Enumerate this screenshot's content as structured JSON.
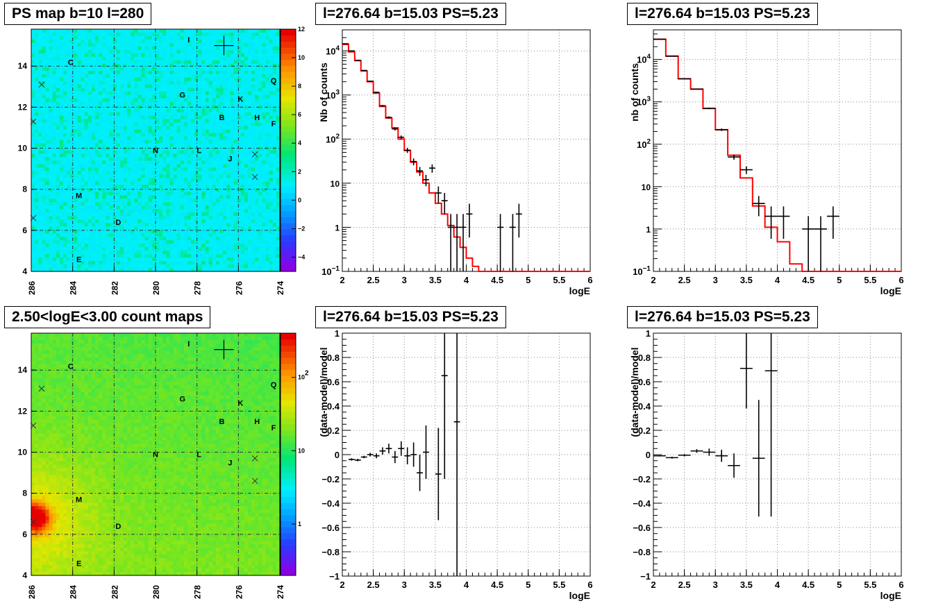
{
  "chart_data": [
    {
      "type": "heatmap",
      "title": "PS map b=10 l=280",
      "xlim": [
        286,
        274
      ],
      "ylim": [
        4,
        15.8
      ],
      "x_ticks": [
        "286",
        "284",
        "282",
        "280",
        "278",
        "276",
        "274"
      ],
      "y_ticks": [
        "4",
        "6",
        "8",
        "10",
        "12",
        "14"
      ],
      "palette_ticks": [
        "−4",
        "−2",
        "0",
        "2",
        "4",
        "6",
        "8",
        "10",
        "12"
      ],
      "palette_range": [
        -5,
        12
      ],
      "source_labels": [
        {
          "label": "I",
          "l": 278.4,
          "b": 15.3
        },
        {
          "label": "C",
          "l": 284.1,
          "b": 14.2
        },
        {
          "label": "Q",
          "l": 274.3,
          "b": 13.3
        },
        {
          "label": "G",
          "l": 278.7,
          "b": 12.6
        },
        {
          "label": "K",
          "l": 275.9,
          "b": 12.4
        },
        {
          "label": "B",
          "l": 276.8,
          "b": 11.5
        },
        {
          "label": "H",
          "l": 275.1,
          "b": 11.5
        },
        {
          "label": "F",
          "l": 274.3,
          "b": 11.2
        },
        {
          "label": "N",
          "l": 280.0,
          "b": 9.9
        },
        {
          "label": "L",
          "l": 277.9,
          "b": 9.9
        },
        {
          "label": "J",
          "l": 276.4,
          "b": 9.5
        },
        {
          "label": "M",
          "l": 283.7,
          "b": 7.7
        },
        {
          "label": "D",
          "l": 281.8,
          "b": 6.4
        },
        {
          "label": "E",
          "l": 283.7,
          "b": 4.6
        }
      ],
      "x_markers": [
        {
          "l": 285.5,
          "b": 13.1
        },
        {
          "l": 275.2,
          "b": 9.7
        },
        {
          "l": 275.2,
          "b": 8.6
        },
        {
          "l": 285.9,
          "b": 11.3
        },
        {
          "l": 285.9,
          "b": 6.6
        }
      ],
      "plus_marker": {
        "l": 276.7,
        "b": 15.0
      },
      "hotspot": null
    },
    {
      "type": "line",
      "title": "l=276.64 b=15.03 PS=5.23",
      "xlabel": "logE",
      "ylabel": "Nb of counts",
      "xlim": [
        2,
        6
      ],
      "ylim": [
        0.1,
        30000
      ],
      "yscale": "log",
      "x_ticks": [
        "2",
        "2.5",
        "3",
        "3.5",
        "4",
        "4.5",
        "5",
        "5.5",
        "6"
      ],
      "y_ticks": [
        "10^-1",
        "1",
        "10",
        "10^2",
        "10^3",
        "10^4"
      ],
      "bin_width": 0.1,
      "model": {
        "color": "#ff0000",
        "x": [
          2.0,
          2.1,
          2.2,
          2.3,
          2.4,
          2.5,
          2.6,
          2.7,
          2.8,
          2.9,
          3.0,
          3.1,
          3.2,
          3.3,
          3.4,
          3.5,
          3.6,
          3.7,
          3.8,
          3.9,
          4.0,
          4.1,
          4.2,
          4.3
        ],
        "y": [
          14000,
          9500,
          6000,
          3500,
          2000,
          1100,
          550,
          300,
          180,
          100,
          55,
          30,
          18,
          10,
          6,
          3.5,
          2,
          1.1,
          0.6,
          0.35,
          0.2,
          0.13,
          0.1,
          0.1
        ]
      },
      "data": {
        "color": "#000000",
        "x": [
          2.05,
          2.15,
          2.25,
          2.35,
          2.45,
          2.55,
          2.65,
          2.75,
          2.85,
          2.95,
          3.05,
          3.15,
          3.25,
          3.35,
          3.45,
          3.55,
          3.65,
          3.75,
          3.85,
          3.95,
          4.05,
          4.55,
          4.75,
          4.85
        ],
        "y": [
          14500,
          10000,
          6100,
          3600,
          2050,
          1150,
          570,
          310,
          170,
          110,
          56,
          31,
          19,
          12,
          22,
          6,
          4,
          1,
          1,
          1,
          2,
          1,
          1,
          2
        ]
      }
    },
    {
      "type": "line",
      "title": "l=276.64 b=15.03 PS=5.23",
      "xlabel": "logE",
      "ylabel": "nb of counts",
      "xlim": [
        2,
        6
      ],
      "ylim": [
        0.1,
        50000
      ],
      "yscale": "log",
      "x_ticks": [
        "2",
        "2.5",
        "3",
        "3.5",
        "4",
        "4.5",
        "5",
        "5.5",
        "6"
      ],
      "y_ticks": [
        "10^-1",
        "1",
        "10",
        "10^2",
        "10^3",
        "10^4"
      ],
      "bin_width": 0.2,
      "model": {
        "color": "#ff0000",
        "x": [
          2.0,
          2.2,
          2.4,
          2.6,
          2.8,
          3.0,
          3.2,
          3.4,
          3.6,
          3.8,
          4.0,
          4.2,
          4.4,
          4.6
        ],
        "y": [
          30000,
          12000,
          3500,
          2000,
          700,
          220,
          55,
          16,
          3.5,
          1.1,
          0.5,
          0.15,
          0.1,
          0.1
        ]
      },
      "data": {
        "color": "#000000",
        "x": [
          2.1,
          2.3,
          2.5,
          2.7,
          2.9,
          3.1,
          3.3,
          3.5,
          3.7,
          3.9,
          4.1,
          4.5,
          4.7,
          4.9
        ],
        "y": [
          30000,
          12000,
          3500,
          2000,
          700,
          220,
          50,
          25,
          4,
          2,
          2,
          1,
          1,
          2
        ]
      }
    },
    {
      "type": "heatmap",
      "title": "2.50<logE<3.00 count maps",
      "xlim": [
        286,
        274
      ],
      "ylim": [
        4,
        15.8
      ],
      "x_ticks": [
        "286",
        "284",
        "282",
        "280",
        "278",
        "276",
        "274"
      ],
      "y_ticks": [
        "4",
        "6",
        "8",
        "10",
        "12",
        "14"
      ],
      "palette_ticks": [
        "1",
        "10",
        "10^2"
      ],
      "palette_range": [
        0.2,
        400
      ],
      "source_labels": [
        {
          "label": "I",
          "l": 278.4,
          "b": 15.3
        },
        {
          "label": "C",
          "l": 284.1,
          "b": 14.2
        },
        {
          "label": "Q",
          "l": 274.3,
          "b": 13.3
        },
        {
          "label": "G",
          "l": 278.7,
          "b": 12.6
        },
        {
          "label": "K",
          "l": 275.9,
          "b": 12.4
        },
        {
          "label": "B",
          "l": 276.8,
          "b": 11.5
        },
        {
          "label": "H",
          "l": 275.1,
          "b": 11.5
        },
        {
          "label": "F",
          "l": 274.3,
          "b": 11.2
        },
        {
          "label": "N",
          "l": 280.0,
          "b": 9.9
        },
        {
          "label": "L",
          "l": 277.9,
          "b": 9.9
        },
        {
          "label": "J",
          "l": 276.4,
          "b": 9.5
        },
        {
          "label": "M",
          "l": 283.7,
          "b": 7.7
        },
        {
          "label": "D",
          "l": 281.8,
          "b": 6.4
        },
        {
          "label": "E",
          "l": 283.7,
          "b": 4.6
        }
      ],
      "x_markers": [
        {
          "l": 285.5,
          "b": 13.1
        },
        {
          "l": 275.2,
          "b": 9.7
        },
        {
          "l": 275.2,
          "b": 8.6
        },
        {
          "l": 285.9,
          "b": 11.3
        },
        {
          "l": 285.9,
          "b": 6.6
        }
      ],
      "plus_marker": {
        "l": 276.7,
        "b": 15.0
      },
      "hotspot": {
        "l": 285.8,
        "b": 6.8
      }
    },
    {
      "type": "scatter",
      "title": "l=276.64 b=15.03 PS=5.23",
      "xlabel": "logE",
      "ylabel": "(data-model)/model",
      "xlim": [
        2,
        6
      ],
      "ylim": [
        -1,
        1
      ],
      "x_ticks": [
        "2",
        "2.5",
        "3",
        "3.5",
        "4",
        "4.5",
        "5",
        "5.5",
        "6"
      ],
      "y_ticks": [
        "−1",
        "−0.8",
        "−0.6",
        "−0.4",
        "−0.2",
        "0",
        "0.2",
        "0.4",
        "0.6",
        "0.8",
        "1"
      ],
      "bin_width": 0.1,
      "points": [
        {
          "x": 2.15,
          "y": -0.04,
          "err": 0.01
        },
        {
          "x": 2.25,
          "y": -0.045,
          "err": 0.01
        },
        {
          "x": 2.35,
          "y": -0.02,
          "err": 0.01
        },
        {
          "x": 2.45,
          "y": 0.0,
          "err": 0.015
        },
        {
          "x": 2.55,
          "y": -0.01,
          "err": 0.02
        },
        {
          "x": 2.65,
          "y": 0.03,
          "err": 0.03
        },
        {
          "x": 2.75,
          "y": 0.05,
          "err": 0.04
        },
        {
          "x": 2.85,
          "y": -0.02,
          "err": 0.05
        },
        {
          "x": 2.95,
          "y": 0.05,
          "err": 0.06
        },
        {
          "x": 3.05,
          "y": -0.01,
          "err": 0.07
        },
        {
          "x": 3.15,
          "y": 0.0,
          "err": 0.1
        },
        {
          "x": 3.25,
          "y": -0.15,
          "err": 0.15
        },
        {
          "x": 3.35,
          "y": 0.02,
          "err": 0.22
        },
        {
          "x": 3.55,
          "y": -0.16,
          "err": 0.38
        },
        {
          "x": 3.65,
          "y": 0.65,
          "err": 0.85
        },
        {
          "x": 3.85,
          "y": 0.27,
          "err": 1.3
        }
      ]
    },
    {
      "type": "scatter",
      "title": "l=276.64 b=15.03 PS=5.23",
      "xlabel": "logE",
      "ylabel": "(data-model)/model",
      "xlim": [
        2,
        6
      ],
      "ylim": [
        -1,
        1
      ],
      "x_ticks": [
        "2",
        "2.5",
        "3",
        "3.5",
        "4",
        "4.5",
        "5",
        "5.5",
        "6"
      ],
      "y_ticks": [
        "−1",
        "−0.8",
        "−0.6",
        "−0.4",
        "−0.2",
        "0",
        "0.2",
        "0.4",
        "0.6",
        "0.8",
        "1"
      ],
      "bin_width": 0.2,
      "points": [
        {
          "x": 2.1,
          "y": -0.01,
          "err": 0.005
        },
        {
          "x": 2.3,
          "y": -0.025,
          "err": 0.008
        },
        {
          "x": 2.5,
          "y": -0.005,
          "err": 0.01
        },
        {
          "x": 2.7,
          "y": 0.03,
          "err": 0.015
        },
        {
          "x": 2.9,
          "y": 0.02,
          "err": 0.03
        },
        {
          "x": 3.1,
          "y": -0.01,
          "err": 0.05
        },
        {
          "x": 3.3,
          "y": -0.09,
          "err": 0.1
        },
        {
          "x": 3.5,
          "y": 0.71,
          "err": 0.33
        },
        {
          "x": 3.7,
          "y": -0.03,
          "err": 0.48
        },
        {
          "x": 3.9,
          "y": 0.69,
          "err": 1.2
        }
      ]
    }
  ]
}
